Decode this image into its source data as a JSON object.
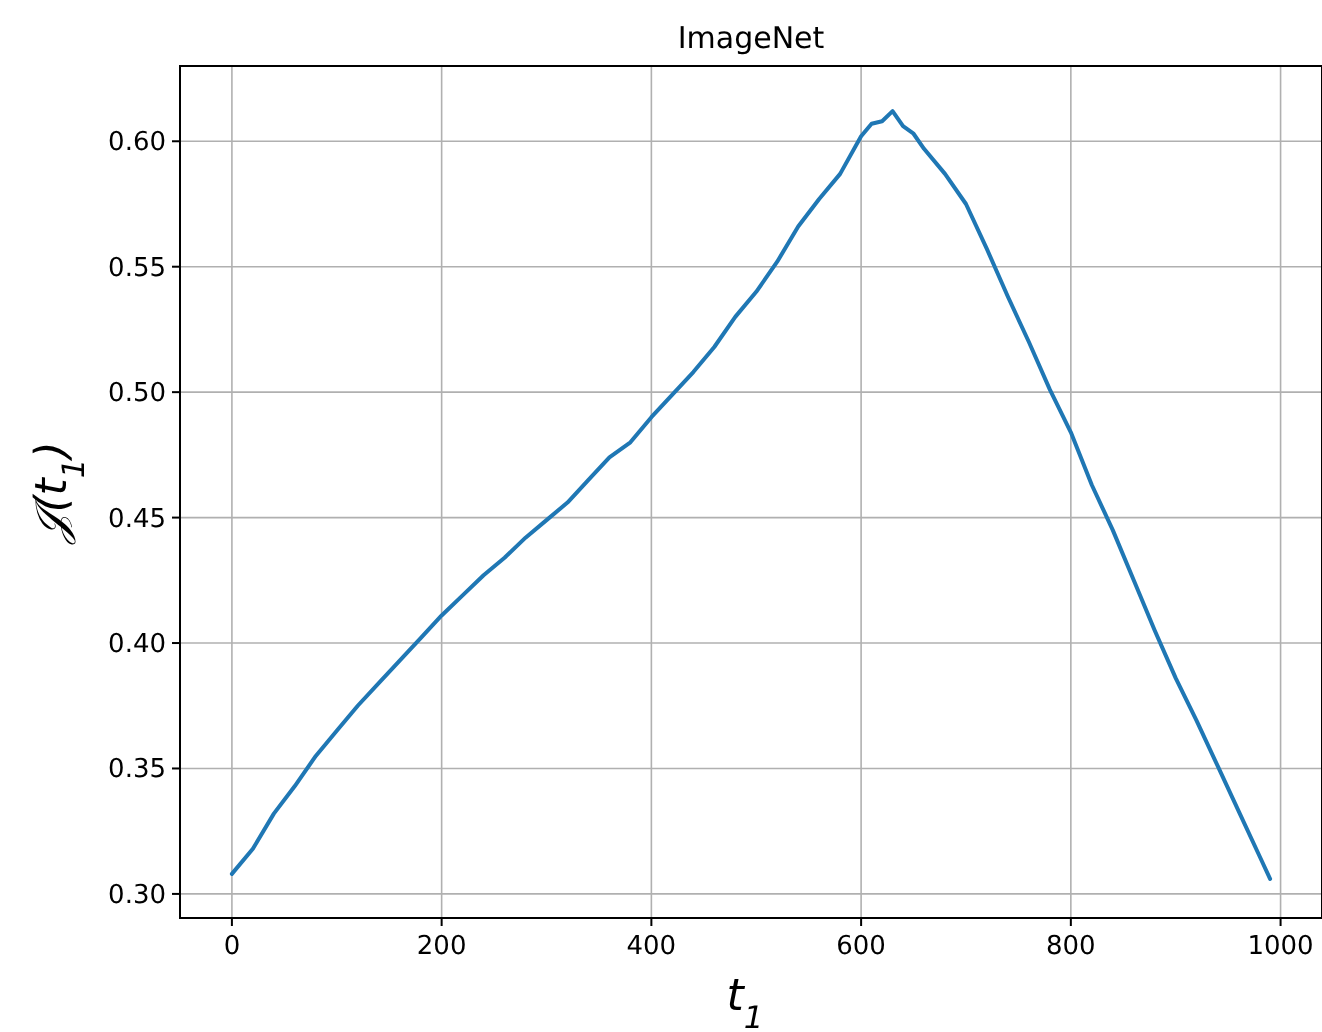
{
  "chart_data": {
    "type": "line",
    "title": "ImageNet",
    "xlabel": "t$_{1}$",
    "ylabel": "𝒥(t$_{1}$)",
    "x": [
      0,
      20,
      40,
      60,
      80,
      100,
      120,
      140,
      160,
      180,
      200,
      220,
      240,
      260,
      280,
      300,
      320,
      340,
      360,
      380,
      400,
      420,
      440,
      460,
      480,
      500,
      520,
      540,
      560,
      580,
      600,
      610,
      620,
      630,
      640,
      650,
      660,
      680,
      700,
      720,
      740,
      760,
      780,
      800,
      820,
      840,
      860,
      880,
      900,
      920,
      940,
      960,
      980,
      990
    ],
    "series": [
      {
        "color": "#1f77b4",
        "values": [
          0.308,
          0.318,
          0.332,
          0.343,
          0.355,
          0.365,
          0.375,
          0.384,
          0.393,
          0.402,
          0.411,
          0.419,
          0.427,
          0.434,
          0.442,
          0.449,
          0.456,
          0.465,
          0.474,
          0.48,
          0.49,
          0.499,
          0.508,
          0.518,
          0.53,
          0.54,
          0.552,
          0.566,
          0.577,
          0.587,
          0.602,
          0.607,
          0.608,
          0.612,
          0.606,
          0.603,
          0.597,
          0.587,
          0.575,
          0.557,
          0.538,
          0.52,
          0.501,
          0.484,
          0.463,
          0.445,
          0.425,
          0.405,
          0.386,
          0.369,
          0.351,
          0.333,
          0.315,
          0.306
        ]
      }
    ],
    "xlim": [
      -49.5,
      1039.5
    ],
    "ylim": [
      0.2904,
      0.63
    ],
    "xticks": [
      0,
      200,
      400,
      600,
      800,
      1000
    ],
    "yticks": [
      {
        "value": 0.3,
        "label": "0.30"
      },
      {
        "value": 0.35,
        "label": "0.35"
      },
      {
        "value": 0.4,
        "label": "0.40"
      },
      {
        "value": 0.45,
        "label": "0.45"
      },
      {
        "value": 0.5,
        "label": "0.50"
      },
      {
        "value": 0.55,
        "label": "0.55"
      },
      {
        "value": 0.6,
        "label": "0.60"
      }
    ],
    "grid": true,
    "line_style": "solid"
  }
}
